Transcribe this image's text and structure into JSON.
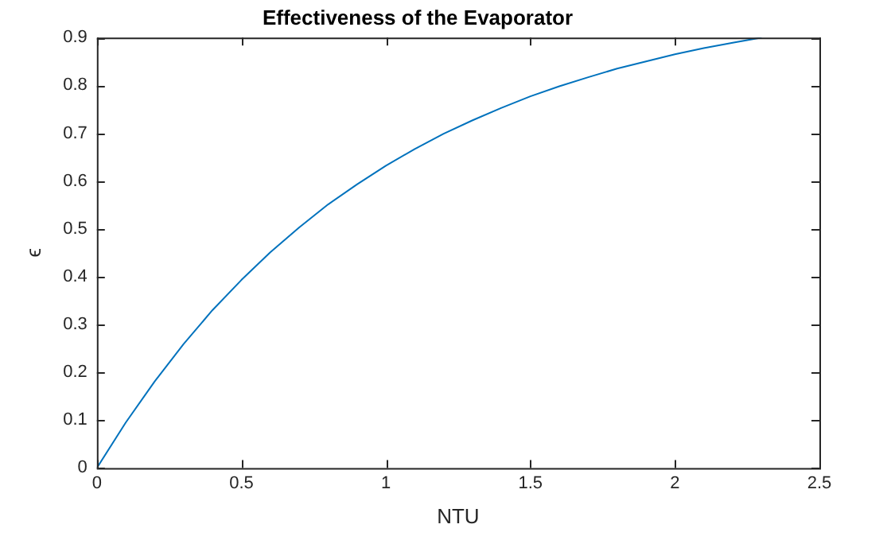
{
  "chart_data": {
    "type": "line",
    "title": "Effectiveness of the Evaporator",
    "xlabel": "NTU",
    "ylabel": "ϵ",
    "x": [
      0,
      0.1,
      0.2,
      0.3,
      0.4,
      0.5,
      0.6,
      0.7,
      0.8,
      0.9,
      1.0,
      1.1,
      1.2,
      1.3,
      1.4,
      1.5,
      1.6,
      1.7,
      1.8,
      1.9,
      2.0,
      2.1,
      2.2,
      2.3
    ],
    "series": [
      {
        "color": "#0072bd",
        "values": [
          0,
          0.095,
          0.181,
          0.259,
          0.33,
          0.393,
          0.451,
          0.503,
          0.551,
          0.593,
          0.632,
          0.667,
          0.699,
          0.727,
          0.753,
          0.777,
          0.798,
          0.817,
          0.835,
          0.85,
          0.865,
          0.878,
          0.889,
          0.9
        ]
      }
    ],
    "xlim": [
      0,
      2.5
    ],
    "xticks": [
      0,
      0.5,
      1,
      1.5,
      2,
      2.5
    ],
    "ylim": [
      0,
      0.9
    ],
    "yticks": [
      0,
      0.1,
      0.2,
      0.3,
      0.4,
      0.5,
      0.6,
      0.7,
      0.8,
      0.9
    ],
    "grid": false,
    "legend": false,
    "marker": "none",
    "line_style": "solid"
  }
}
